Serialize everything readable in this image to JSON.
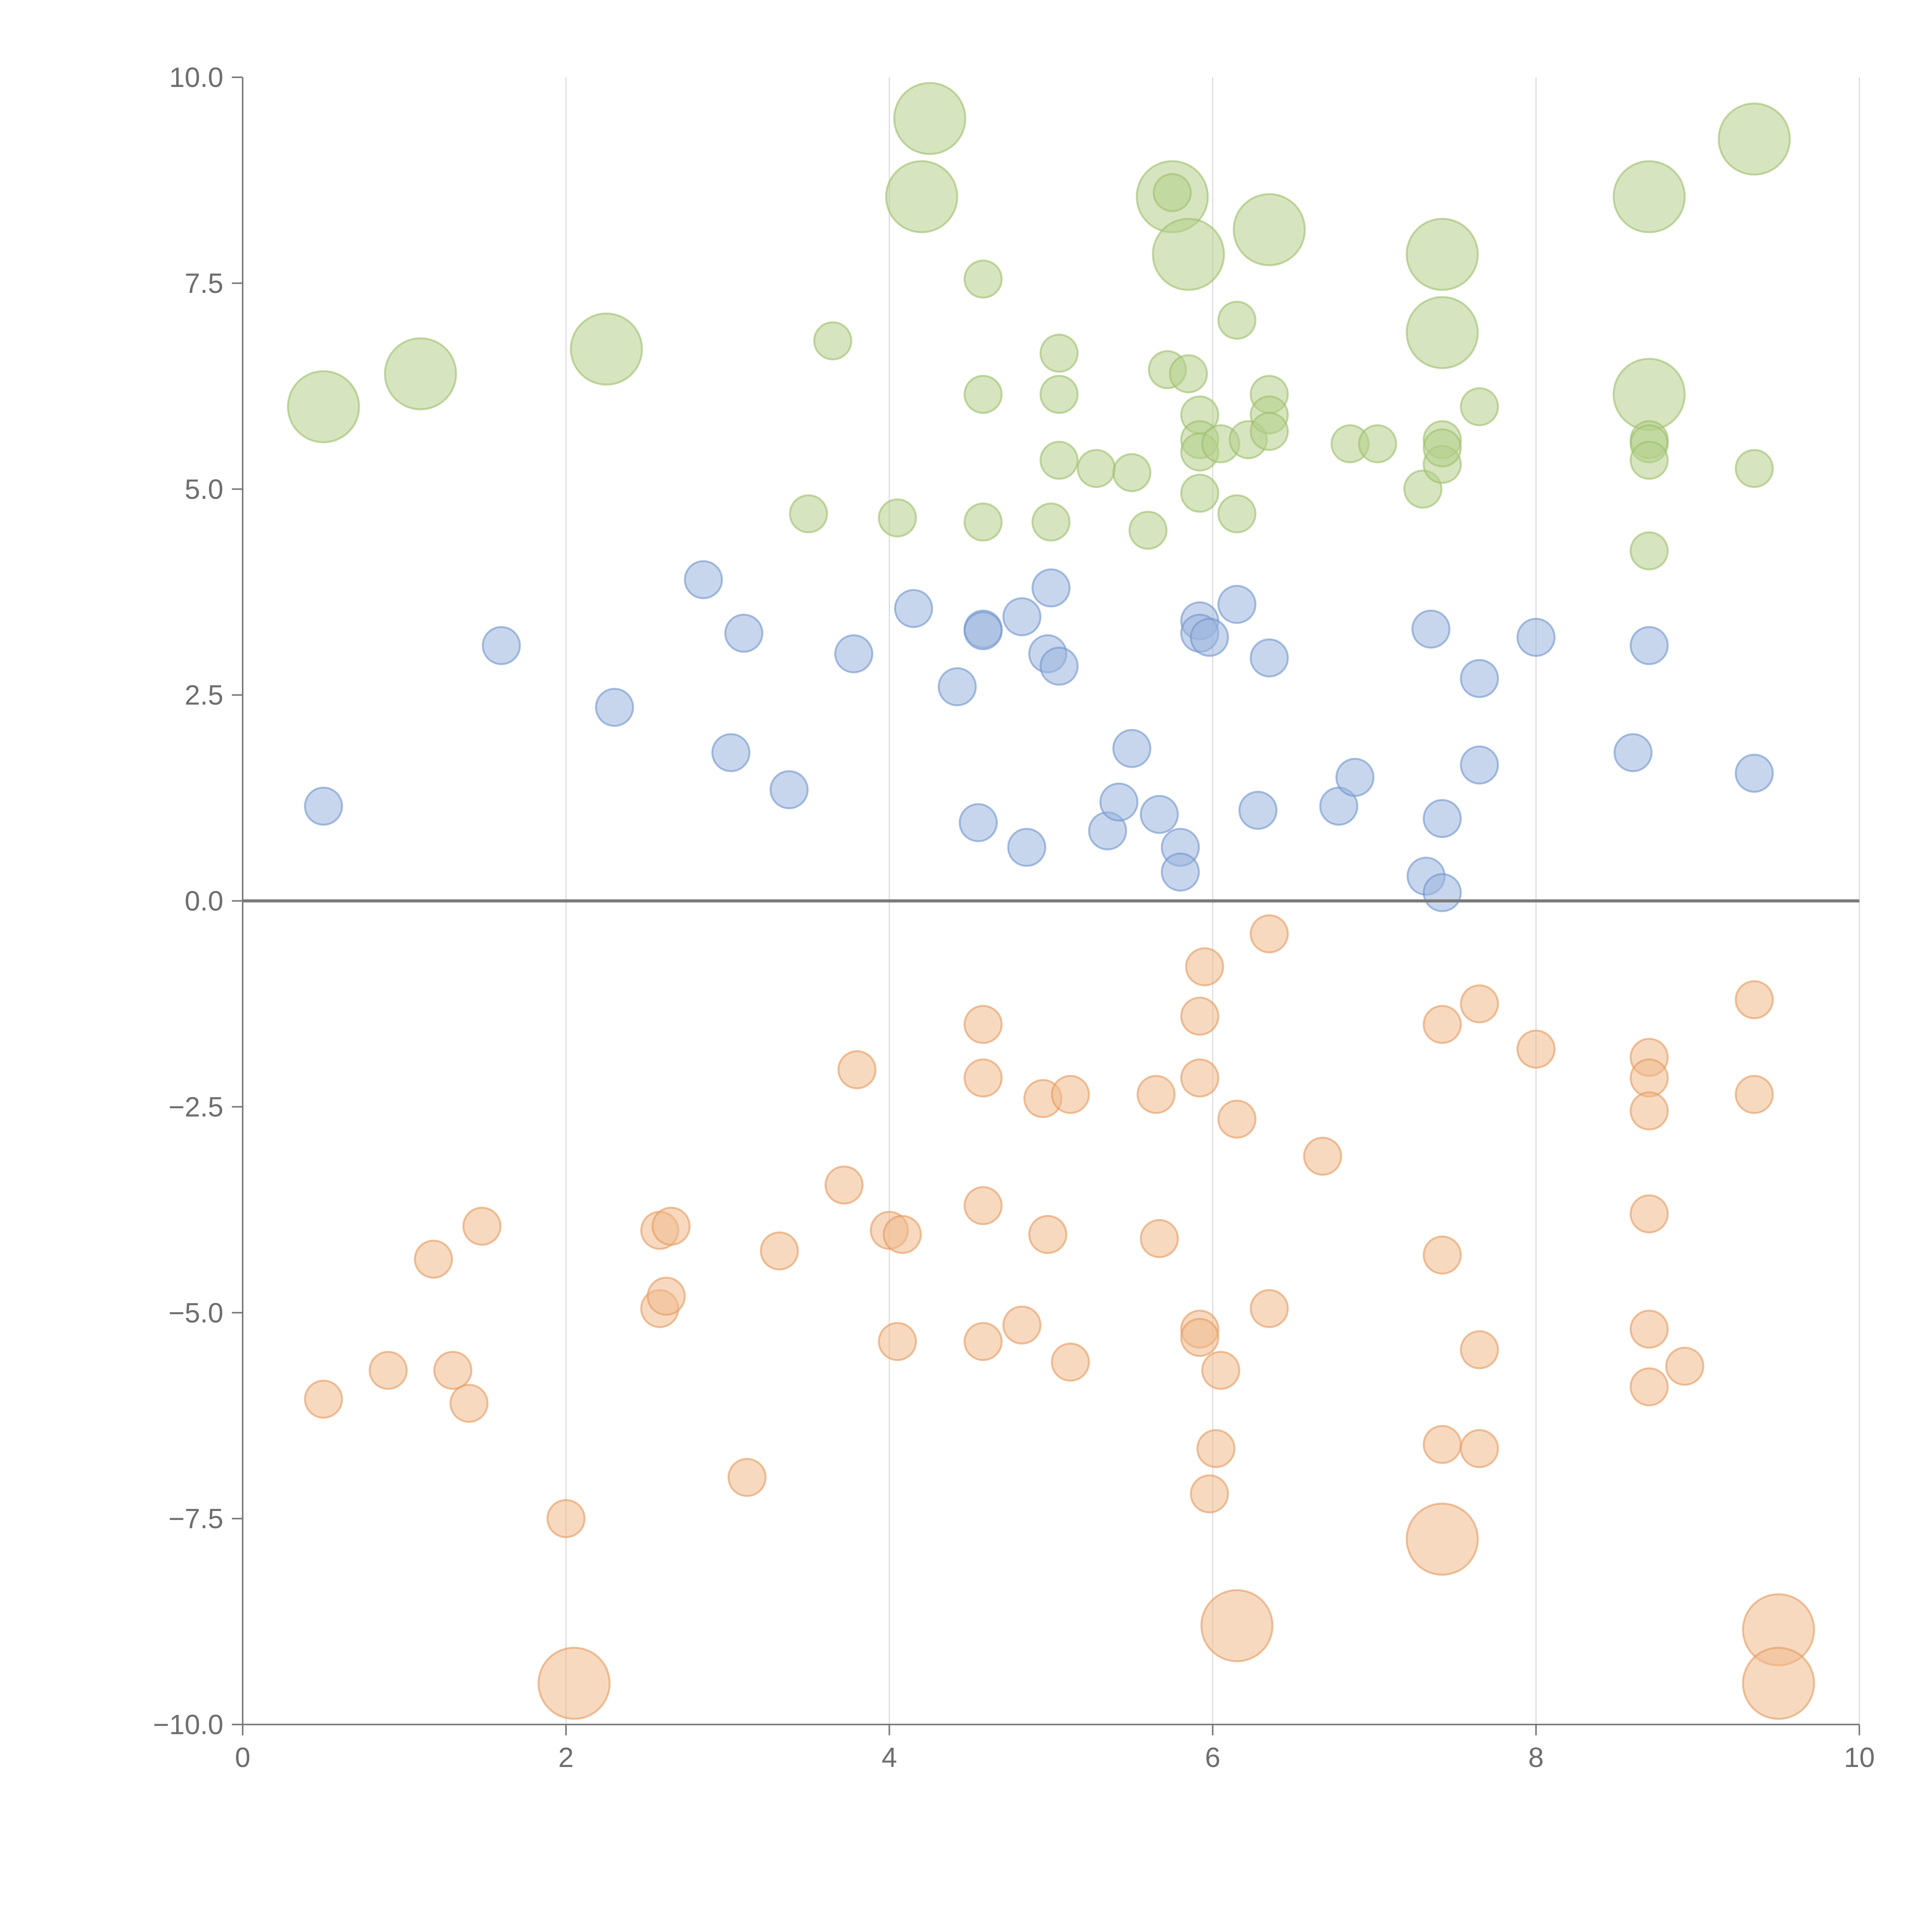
{
  "chart_data": {
    "type": "scatter",
    "title": "",
    "xlabel": "",
    "ylabel": "",
    "xlim": [
      0,
      10
    ],
    "ylim": [
      -10,
      10
    ],
    "x_ticks": [
      0,
      2,
      4,
      6,
      8,
      10
    ],
    "x_tick_labels": [
      "0",
      "2",
      "4",
      "6",
      "8",
      "10"
    ],
    "y_ticks": [
      10,
      7.5,
      5,
      2.5,
      0,
      -2.5,
      -5,
      -7.5,
      -10
    ],
    "y_tick_labels": [
      "10.0",
      "7.5",
      "5.0",
      "2.5",
      "0.0",
      "−2.5",
      "−5.0",
      "−7.5",
      "−10.0"
    ],
    "vertical_grid": true,
    "horizontal_grid": false,
    "reference_line_y": 0,
    "legend": "none",
    "size_scale": {
      "small": 1,
      "large": 2
    },
    "series": [
      {
        "name": "green",
        "color": "#b5cf8a",
        "edge_color": "#9dbe6a",
        "points": [
          [
            0.5,
            6.0,
            2
          ],
          [
            1.1,
            6.4,
            2
          ],
          [
            2.25,
            6.7,
            2
          ],
          [
            4.25,
            9.5,
            2
          ],
          [
            4.2,
            8.55,
            2
          ],
          [
            5.75,
            8.55,
            2
          ],
          [
            5.85,
            7.85,
            2
          ],
          [
            6.35,
            8.15,
            2
          ],
          [
            7.42,
            7.85,
            2
          ],
          [
            7.42,
            6.9,
            2
          ],
          [
            8.7,
            8.55,
            2
          ],
          [
            8.7,
            6.15,
            2
          ],
          [
            9.35,
            9.25,
            2
          ],
          [
            4.58,
            7.55,
            1
          ],
          [
            3.65,
            6.8,
            1
          ],
          [
            4.58,
            6.15,
            1
          ],
          [
            5.05,
            6.65,
            1
          ],
          [
            5.05,
            6.15,
            1
          ],
          [
            5.05,
            5.35,
            1
          ],
          [
            5.28,
            5.25,
            1
          ],
          [
            5.5,
            5.2,
            1
          ],
          [
            5.72,
            6.45,
            1
          ],
          [
            5.85,
            6.4,
            1
          ],
          [
            5.92,
            5.9,
            1
          ],
          [
            5.92,
            5.6,
            1
          ],
          [
            5.92,
            5.45,
            1
          ],
          [
            5.92,
            4.95,
            1
          ],
          [
            6.05,
            5.55,
            1
          ],
          [
            6.15,
            7.05,
            1
          ],
          [
            6.22,
            5.6,
            1
          ],
          [
            6.35,
            6.15,
            1
          ],
          [
            6.35,
            5.9,
            1
          ],
          [
            6.35,
            5.7,
            1
          ],
          [
            6.15,
            4.7,
            1
          ],
          [
            5.6,
            4.5,
            1
          ],
          [
            5.0,
            4.6,
            1
          ],
          [
            4.58,
            4.6,
            1
          ],
          [
            4.05,
            4.65,
            1
          ],
          [
            3.5,
            4.7,
            1
          ],
          [
            5.75,
            8.6,
            1
          ],
          [
            6.85,
            5.55,
            1
          ],
          [
            7.02,
            5.55,
            1
          ],
          [
            7.3,
            5.0,
            1
          ],
          [
            7.42,
            5.6,
            1
          ],
          [
            7.42,
            5.3,
            1
          ],
          [
            7.42,
            5.5,
            1
          ],
          [
            7.65,
            6.0,
            1
          ],
          [
            8.7,
            5.6,
            1
          ],
          [
            8.7,
            5.55,
            1
          ],
          [
            8.7,
            5.35,
            1
          ],
          [
            8.7,
            4.25,
            1
          ],
          [
            9.35,
            5.25,
            1
          ]
        ]
      },
      {
        "name": "blue",
        "color": "#9bb5de",
        "edge_color": "#6f95cc",
        "points": [
          [
            0.5,
            1.15,
            1
          ],
          [
            1.6,
            3.1,
            1
          ],
          [
            2.3,
            2.35,
            1
          ],
          [
            2.85,
            3.9,
            1
          ],
          [
            3.1,
            3.25,
            1
          ],
          [
            3.02,
            1.8,
            1
          ],
          [
            3.38,
            1.35,
            1
          ],
          [
            3.78,
            3.0,
            1
          ],
          [
            4.15,
            3.55,
            1
          ],
          [
            4.42,
            2.6,
            1
          ],
          [
            4.58,
            3.3,
            1
          ],
          [
            4.58,
            3.28,
            1
          ],
          [
            4.82,
            3.45,
            1
          ],
          [
            5.0,
            3.8,
            1
          ],
          [
            4.98,
            3.0,
            1
          ],
          [
            5.05,
            2.85,
            1
          ],
          [
            4.55,
            0.95,
            1
          ],
          [
            4.85,
            0.65,
            1
          ],
          [
            5.35,
            0.85,
            1
          ],
          [
            5.42,
            1.2,
            1
          ],
          [
            5.5,
            1.85,
            1
          ],
          [
            5.67,
            1.05,
            1
          ],
          [
            5.8,
            0.65,
            1
          ],
          [
            5.8,
            0.35,
            1
          ],
          [
            5.92,
            3.4,
            1
          ],
          [
            5.92,
            3.25,
            1
          ],
          [
            5.98,
            3.2,
            1
          ],
          [
            6.15,
            3.6,
            1
          ],
          [
            6.35,
            2.95,
            1
          ],
          [
            6.28,
            1.1,
            1
          ],
          [
            6.78,
            1.15,
            1
          ],
          [
            6.88,
            1.5,
            1
          ],
          [
            7.35,
            3.3,
            1
          ],
          [
            7.32,
            0.3,
            1
          ],
          [
            7.42,
            1.0,
            1
          ],
          [
            7.42,
            0.1,
            1
          ],
          [
            7.65,
            2.7,
            1
          ],
          [
            7.65,
            1.65,
            1
          ],
          [
            8.0,
            3.2,
            1
          ],
          [
            8.6,
            1.8,
            1
          ],
          [
            8.7,
            3.1,
            1
          ],
          [
            9.35,
            1.55,
            1
          ]
        ]
      },
      {
        "name": "orange",
        "color": "#f0b98c",
        "edge_color": "#e49a5e",
        "points": [
          [
            0.5,
            -6.05,
            1
          ],
          [
            0.9,
            -5.7,
            1
          ],
          [
            1.18,
            -4.35,
            1
          ],
          [
            1.48,
            -3.95,
            1
          ],
          [
            1.3,
            -5.7,
            1
          ],
          [
            1.4,
            -6.1,
            1
          ],
          [
            2.0,
            -7.5,
            1
          ],
          [
            2.58,
            -4.0,
            1
          ],
          [
            2.65,
            -3.95,
            1
          ],
          [
            2.58,
            -4.95,
            1
          ],
          [
            2.62,
            -4.8,
            1
          ],
          [
            3.12,
            -7.0,
            1
          ],
          [
            3.32,
            -4.25,
            1
          ],
          [
            3.72,
            -3.45,
            1
          ],
          [
            3.8,
            -2.05,
            1
          ],
          [
            4.0,
            -4.0,
            1
          ],
          [
            4.08,
            -4.05,
            1
          ],
          [
            4.05,
            -5.35,
            1
          ],
          [
            4.58,
            -1.5,
            1
          ],
          [
            4.58,
            -2.15,
            1
          ],
          [
            4.58,
            -3.7,
            1
          ],
          [
            4.58,
            -5.35,
            1
          ],
          [
            4.82,
            -5.15,
            1
          ],
          [
            4.95,
            -2.4,
            1
          ],
          [
            5.12,
            -2.35,
            1
          ],
          [
            4.98,
            -4.05,
            1
          ],
          [
            5.12,
            -5.6,
            1
          ],
          [
            5.65,
            -2.35,
            1
          ],
          [
            5.67,
            -4.1,
            1
          ],
          [
            5.92,
            -1.4,
            1
          ],
          [
            5.95,
            -0.8,
            1
          ],
          [
            5.92,
            -2.15,
            1
          ],
          [
            5.92,
            -5.2,
            1
          ],
          [
            5.92,
            -5.3,
            1
          ],
          [
            6.05,
            -5.7,
            1
          ],
          [
            6.02,
            -6.65,
            1
          ],
          [
            5.98,
            -7.2,
            1
          ],
          [
            6.15,
            -2.65,
            1
          ],
          [
            6.35,
            -0.4,
            1
          ],
          [
            6.35,
            -4.95,
            1
          ],
          [
            6.68,
            -3.1,
            1
          ],
          [
            7.42,
            -1.5,
            1
          ],
          [
            7.65,
            -1.25,
            1
          ],
          [
            7.42,
            -4.3,
            1
          ],
          [
            7.42,
            -6.6,
            1
          ],
          [
            7.65,
            -6.65,
            1
          ],
          [
            7.65,
            -5.45,
            1
          ],
          [
            8.0,
            -1.8,
            1
          ],
          [
            8.7,
            -1.9,
            1
          ],
          [
            8.7,
            -2.15,
            1
          ],
          [
            8.7,
            -2.55,
            1
          ],
          [
            8.7,
            -3.8,
            1
          ],
          [
            8.7,
            -5.2,
            1
          ],
          [
            8.7,
            -5.9,
            1
          ],
          [
            8.92,
            -5.65,
            1
          ],
          [
            9.35,
            -1.2,
            1
          ],
          [
            9.35,
            -2.35,
            1
          ],
          [
            2.05,
            -9.5,
            2
          ],
          [
            6.15,
            -8.8,
            2
          ],
          [
            7.42,
            -7.75,
            2
          ],
          [
            9.5,
            -8.85,
            2
          ],
          [
            9.5,
            -9.5,
            2
          ]
        ]
      }
    ]
  }
}
